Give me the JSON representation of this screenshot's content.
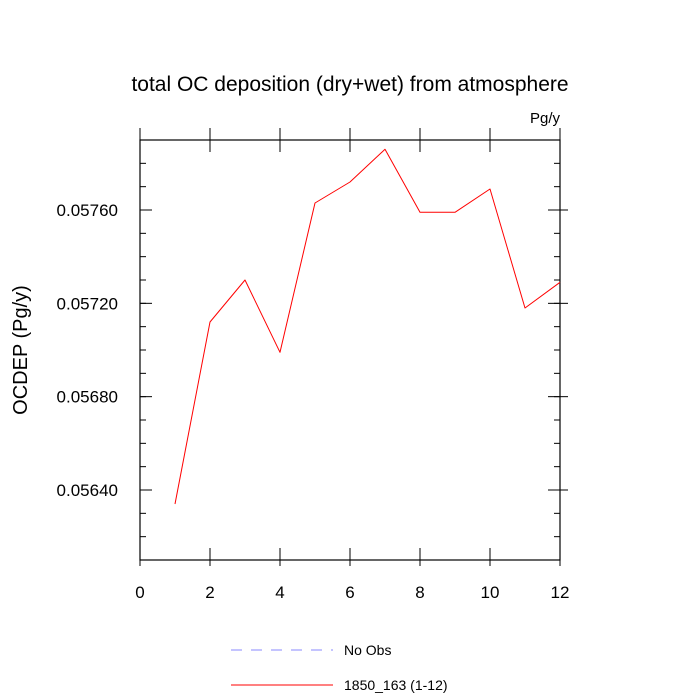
{
  "chart_data": {
    "type": "line",
    "title": "total OC deposition (dry+wet) from atmosphere",
    "units": "Pg/y",
    "ylabel": "OCDEP  (Pg/y)",
    "xlabel": "",
    "xlim": [
      0,
      12
    ],
    "ylim": [
      0.0561,
      0.0579
    ],
    "x_ticks": [
      0,
      2,
      4,
      6,
      8,
      10,
      12
    ],
    "x_tick_labels": [
      "0",
      "2",
      "4",
      "6",
      "8",
      "10",
      "12"
    ],
    "y_ticks": [
      0.0564,
      0.0568,
      0.0572,
      0.0576
    ],
    "y_tick_labels": [
      "0.05640",
      "0.05680",
      "0.05720",
      "0.05760"
    ],
    "grid": false,
    "legend_placement": "bottom",
    "series": [
      {
        "name": "1850_163 (1-12)",
        "color": "#ff0000",
        "dash": "solid",
        "x": [
          1,
          2,
          3,
          4,
          5,
          6,
          7,
          8,
          9,
          10,
          11,
          12
        ],
        "y": [
          0.05634,
          0.05712,
          0.0573,
          0.05699,
          0.05763,
          0.05772,
          0.05786,
          0.05759,
          0.05759,
          0.05769,
          0.05718,
          0.05729
        ]
      }
    ],
    "legend": [
      {
        "label": "No Obs",
        "color": "#8888ff",
        "dash": "dashed"
      },
      {
        "label": "1850_163 (1-12)",
        "color": "#ff0000",
        "dash": "solid"
      }
    ]
  }
}
